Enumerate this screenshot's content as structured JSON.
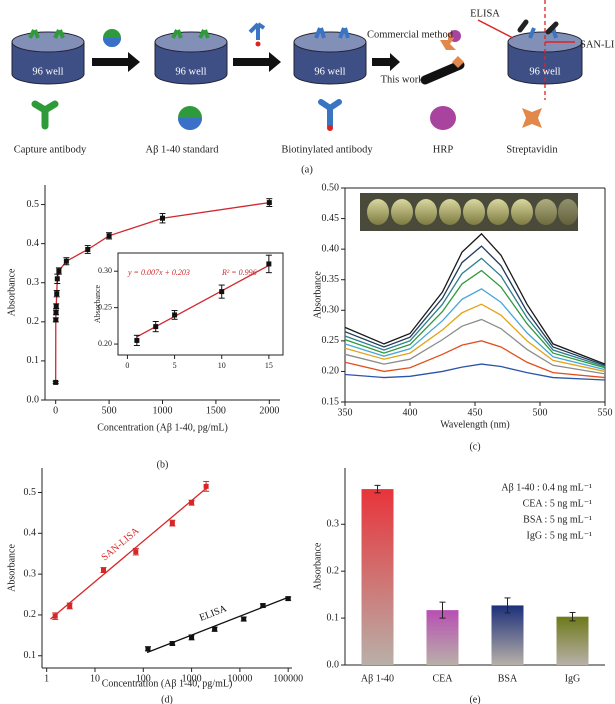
{
  "schematic": {
    "wells": [
      "96 well",
      "96 well",
      "96 well",
      "96 well"
    ],
    "items": [
      "Capture antibody",
      "Aβ 1-40 standard",
      "Biotinylated antibody",
      "HRP",
      "Streptavidin"
    ],
    "methods": [
      "Commercial method",
      "This work"
    ],
    "callouts": [
      "ELISA",
      "SAN-LISA"
    ],
    "panel_label": "(a)"
  },
  "chart_data": [
    {
      "type": "line",
      "x": [
        0,
        1,
        3,
        5,
        10,
        15,
        30,
        100,
        300,
        500,
        1000,
        2000
      ],
      "values": [
        0.045,
        0.205,
        0.224,
        0.24,
        0.272,
        0.31,
        0.33,
        0.355,
        0.385,
        0.42,
        0.465,
        0.505
      ],
      "errors": [
        0.003,
        0.005,
        0.006,
        0.006,
        0.008,
        0.012,
        0.008,
        0.009,
        0.01,
        0.008,
        0.012,
        0.01
      ],
      "line_color": "#d0282e",
      "marker_color": "#111111",
      "xlim": [
        -100,
        2100
      ],
      "ylim": [
        0,
        0.55
      ],
      "xticks": [
        0,
        500,
        1000,
        1500,
        2000
      ],
      "yticks": [
        {
          "value": 0,
          "label": "0.0"
        },
        0.1,
        0.2,
        0.3,
        0.4,
        0.5
      ],
      "xlabel": "Concentration (Aβ 1-40, pg/mL)",
      "ylabel": "Absorbance",
      "panel_label": "(b)"
    },
    {
      "type": "line",
      "x": [
        1,
        3,
        5,
        10,
        15
      ],
      "values": [
        0.205,
        0.224,
        0.24,
        0.272,
        0.31
      ],
      "errors": [
        0.007,
        0.007,
        0.006,
        0.009,
        0.012
      ],
      "fit": {
        "x": [
          1,
          15
        ],
        "values": [
          0.21,
          0.308
        ]
      },
      "line_color": "#d0282e",
      "marker_color": "#111111",
      "xlim": [
        -1,
        16.5
      ],
      "ylim": [
        0.185,
        0.325
      ],
      "xticks": [
        0,
        5,
        10,
        15
      ],
      "yticks": [
        {
          "value": 0.2,
          "label": "0.20"
        },
        0.25,
        {
          "value": 0.3,
          "label": "0.30"
        }
      ],
      "ylabel": "Absorbance",
      "annotations": [
        "y = 0.007x + 0.203",
        "R² = 0.996"
      ]
    },
    {
      "type": "line",
      "x": [
        350,
        380,
        400,
        425,
        440,
        455,
        470,
        490,
        510,
        550
      ],
      "series": [
        {
          "color": "#1a1a1a",
          "values": [
            0.272,
            0.245,
            0.262,
            0.33,
            0.395,
            0.425,
            0.39,
            0.31,
            0.245,
            0.212
          ]
        },
        {
          "color": "#1f3a5a",
          "values": [
            0.265,
            0.24,
            0.256,
            0.32,
            0.378,
            0.405,
            0.373,
            0.298,
            0.24,
            0.21
          ]
        },
        {
          "color": "#2f7f8f",
          "values": [
            0.258,
            0.235,
            0.25,
            0.31,
            0.36,
            0.385,
            0.356,
            0.288,
            0.235,
            0.208
          ]
        },
        {
          "color": "#2e9a3a",
          "values": [
            0.252,
            0.23,
            0.244,
            0.298,
            0.343,
            0.365,
            0.338,
            0.278,
            0.23,
            0.206
          ]
        },
        {
          "color": "#45a6d9",
          "values": [
            0.245,
            0.225,
            0.237,
            0.283,
            0.318,
            0.335,
            0.313,
            0.263,
            0.224,
            0.203
          ]
        },
        {
          "color": "#e3a21a",
          "values": [
            0.238,
            0.22,
            0.23,
            0.268,
            0.296,
            0.31,
            0.292,
            0.25,
            0.218,
            0.2
          ]
        },
        {
          "color": "#8c8c8c",
          "values": [
            0.228,
            0.212,
            0.22,
            0.252,
            0.274,
            0.285,
            0.27,
            0.236,
            0.21,
            0.196
          ]
        },
        {
          "color": "#e0501e",
          "values": [
            0.215,
            0.2,
            0.206,
            0.228,
            0.243,
            0.25,
            0.24,
            0.215,
            0.198,
            0.19
          ]
        },
        {
          "color": "#2a55a8",
          "values": [
            0.195,
            0.19,
            0.192,
            0.2,
            0.207,
            0.212,
            0.208,
            0.198,
            0.19,
            0.186
          ]
        }
      ],
      "xlim": [
        350,
        550
      ],
      "ylim": [
        0.15,
        0.5
      ],
      "xticks": [
        350,
        400,
        450,
        500,
        550
      ],
      "yticks": [
        0.15,
        {
          "value": 0.2,
          "label": "0.20"
        },
        0.25,
        {
          "value": 0.3,
          "label": "0.30"
        },
        0.35,
        {
          "value": 0.4,
          "label": "0.40"
        },
        0.45,
        {
          "value": 0.5,
          "label": "0.50"
        }
      ],
      "xlabel": "Wavelength (nm)",
      "ylabel": "Absorbance",
      "panel_label": "(c)"
    },
    {
      "type": "scatter",
      "xscale": "log",
      "series": [
        {
          "name": "SAN-LISA",
          "color": "#d62728",
          "x": [
            1.5,
            3,
            15,
            70,
            400,
            1000,
            2000
          ],
          "values": [
            0.197,
            0.222,
            0.31,
            0.355,
            0.425,
            0.475,
            0.515
          ],
          "errors": [
            0.008,
            0.007,
            0.006,
            0.008,
            0.007,
            0.006,
            0.012
          ],
          "fit": {
            "x": [
              1.2,
              2000
            ],
            "values": [
              0.19,
              0.51
            ]
          }
        },
        {
          "name": "ELISA",
          "color": "#111111",
          "x": [
            125,
            400,
            1000,
            3000,
            12000,
            30000,
            100000
          ],
          "values": [
            0.117,
            0.13,
            0.145,
            0.165,
            0.19,
            0.223,
            0.24
          ],
          "errors": [
            0.005,
            0.004,
            0.006,
            0.005,
            0.005,
            0.004,
            0.004
          ],
          "fit": {
            "x": [
              120,
              100000
            ],
            "values": [
              0.108,
              0.243
            ]
          }
        }
      ],
      "xlim": [
        0.8,
        120000
      ],
      "ylim": [
        0.07,
        0.56
      ],
      "xticks": [
        1,
        10,
        100,
        1000,
        10000,
        100000
      ],
      "yticks": [
        0.1,
        0.2,
        0.3,
        0.4,
        0.5
      ],
      "xlabel": "Concentration (Aβ 1-40, pg/mL)",
      "ylabel": "Absorbance",
      "panel_label": "(d)"
    },
    {
      "type": "bar",
      "categories": [
        "Aβ 1-40",
        "CEA",
        "BSA",
        "IgG"
      ],
      "values": [
        0.375,
        0.117,
        0.127,
        0.103
      ],
      "errors": [
        0.008,
        0.017,
        0.016,
        0.009
      ],
      "colors": [
        "#e8343a",
        "#b84fb3",
        "#1c2f7a",
        "#6e7a1a"
      ],
      "ylim": [
        0,
        0.42
      ],
      "yticks": [
        {
          "value": 0,
          "label": "0.0"
        },
        0.1,
        0.2,
        0.3
      ],
      "ylabel": "Absorbance",
      "annotations": [
        "Aβ 1-40 : 0.4 ng mL⁻¹",
        "CEA : 5 ng mL⁻¹",
        "BSA : 5 ng mL⁻¹",
        "IgG : 5 ng mL⁻¹"
      ],
      "panel_label": "(e)"
    }
  ]
}
